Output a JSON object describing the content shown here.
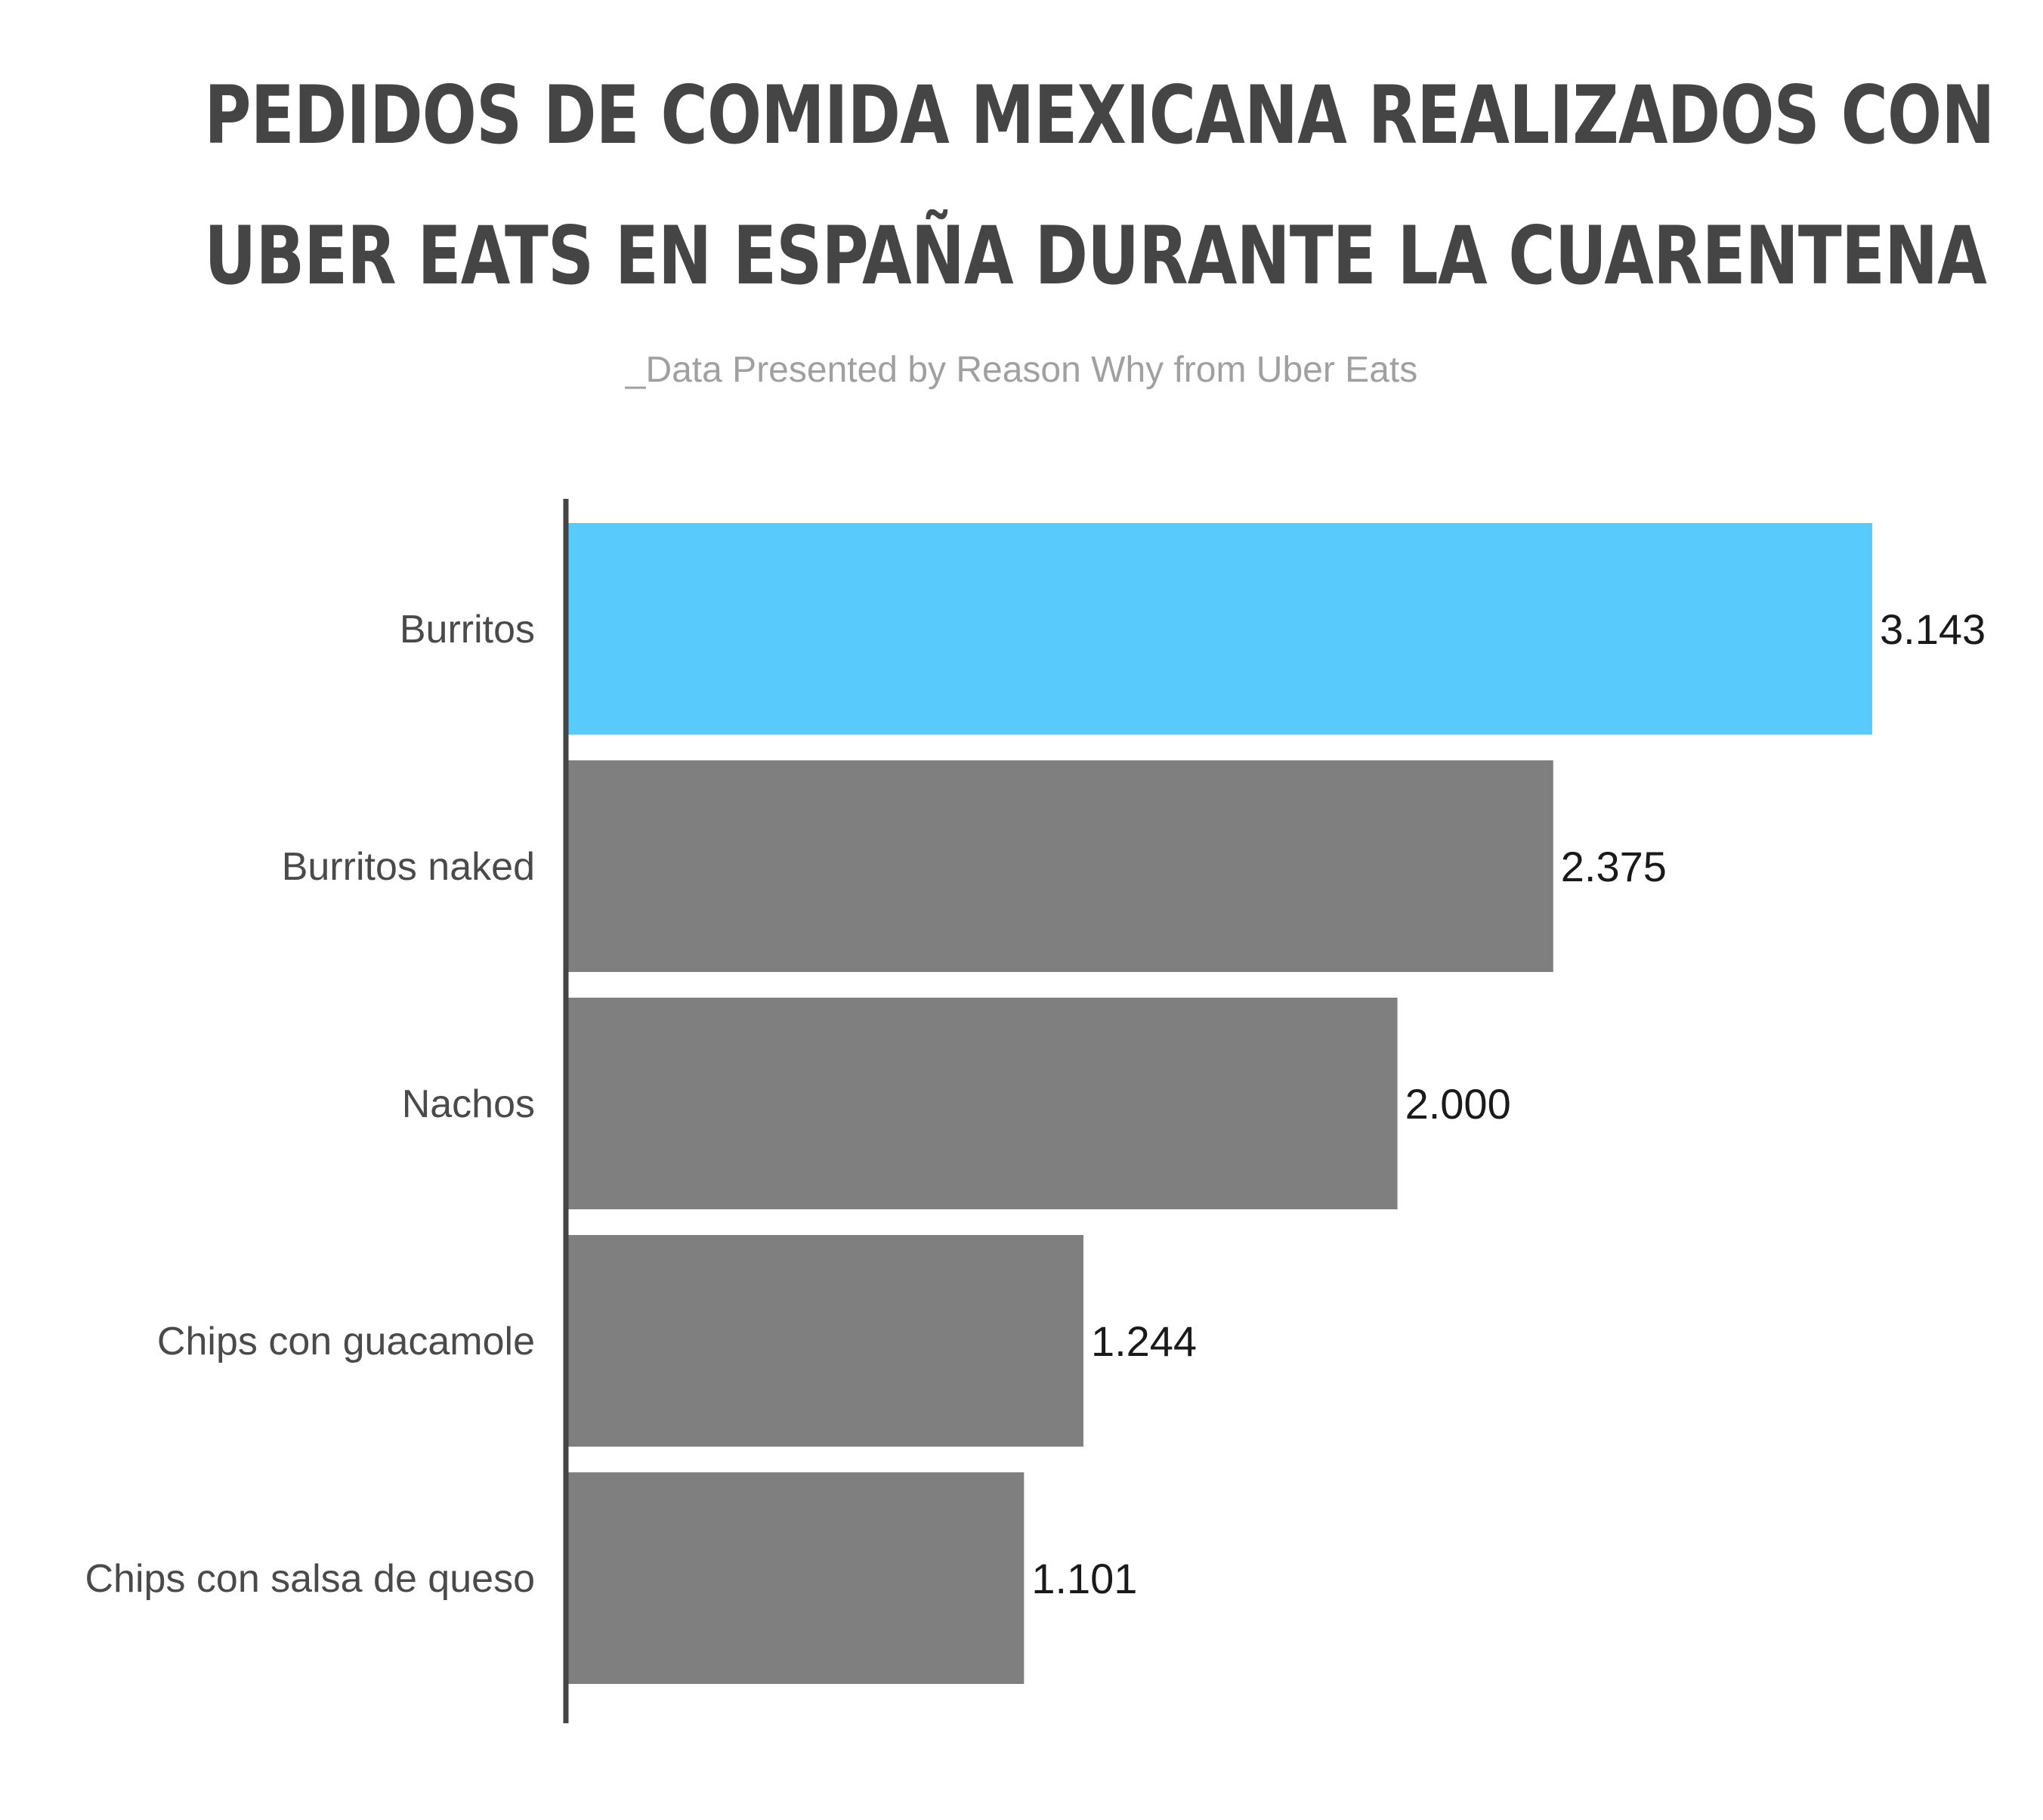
{
  "chart_data": {
    "type": "bar",
    "orientation": "horizontal",
    "title_lines": [
      "PEDIDOS DE COMIDA MEXICANA REALIZADOS CON",
      "UBER EATS EN ESPAÑA DURANTE LA CUARENTENA"
    ],
    "subtitle": "_Data Presented by Reason Why from Uber Eats",
    "categories": [
      "Burritos",
      "Burritos naked",
      "Nachos",
      "Chips con guacamole",
      "Chips con salsa de queso"
    ],
    "values": [
      3143,
      2375,
      2000,
      1244,
      1101
    ],
    "value_labels": [
      "3.143",
      "2.375",
      "2.000",
      "1.244",
      "1.101"
    ],
    "xlim": [
      0,
      3143
    ],
    "grid": false,
    "legend": "none",
    "colors": {
      "highlight": "#58cbfc",
      "bar": "#7f7f7f",
      "axis": "#454545",
      "category_text": "#4a4a4a",
      "value_text": "#1a1a1a"
    },
    "highlight_index": 0
  }
}
